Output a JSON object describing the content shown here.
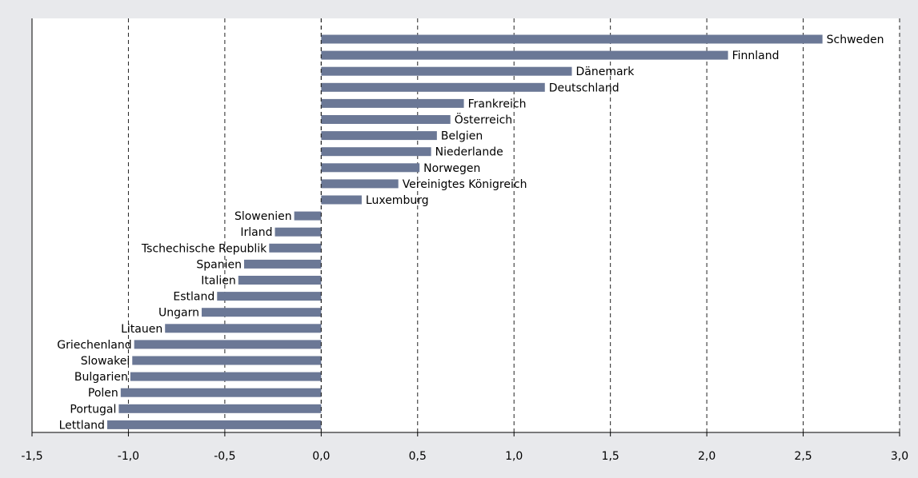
{
  "chart_data": {
    "type": "bar",
    "orientation": "horizontal",
    "title": "",
    "xlabel": "",
    "ylabel": "",
    "xlim": [
      -1.5,
      3.0
    ],
    "x_ticks": [
      -1.5,
      -1.0,
      -0.5,
      0.0,
      0.5,
      1.0,
      1.5,
      2.0,
      2.5,
      3.0
    ],
    "x_tick_labels": [
      "-1,5",
      "-1,0",
      "-0,5",
      "0,0",
      "0,5",
      "1,0",
      "1,5",
      "2,0",
      "2,5",
      "3,0"
    ],
    "grid": "vertical dashed",
    "bar_color": "#6b7896",
    "background_color": "#e8e9ec",
    "plot_background_color": "#ffffff",
    "categories": [
      "Schweden",
      "Finnland",
      "Dänemark",
      "Deutschland",
      "Frankreich",
      "Österreich",
      "Belgien",
      "Niederlande",
      "Norwegen",
      "Vereinigtes Königreich",
      "Luxemburg",
      "Slowenien",
      "Irland",
      "Tschechische Republik",
      "Spanien",
      "Italien",
      "Estland",
      "Ungarn",
      "Litauen",
      "Griechenland",
      "Slowakei",
      "Bulgarien",
      "Polen",
      "Portugal",
      "Lettland"
    ],
    "values": [
      2.6,
      2.11,
      1.3,
      1.16,
      0.74,
      0.67,
      0.6,
      0.57,
      0.51,
      0.4,
      0.21,
      -0.14,
      -0.24,
      -0.27,
      -0.4,
      -0.43,
      -0.54,
      -0.62,
      -0.81,
      -0.97,
      -0.98,
      -0.99,
      -1.04,
      -1.05,
      -1.11
    ]
  }
}
